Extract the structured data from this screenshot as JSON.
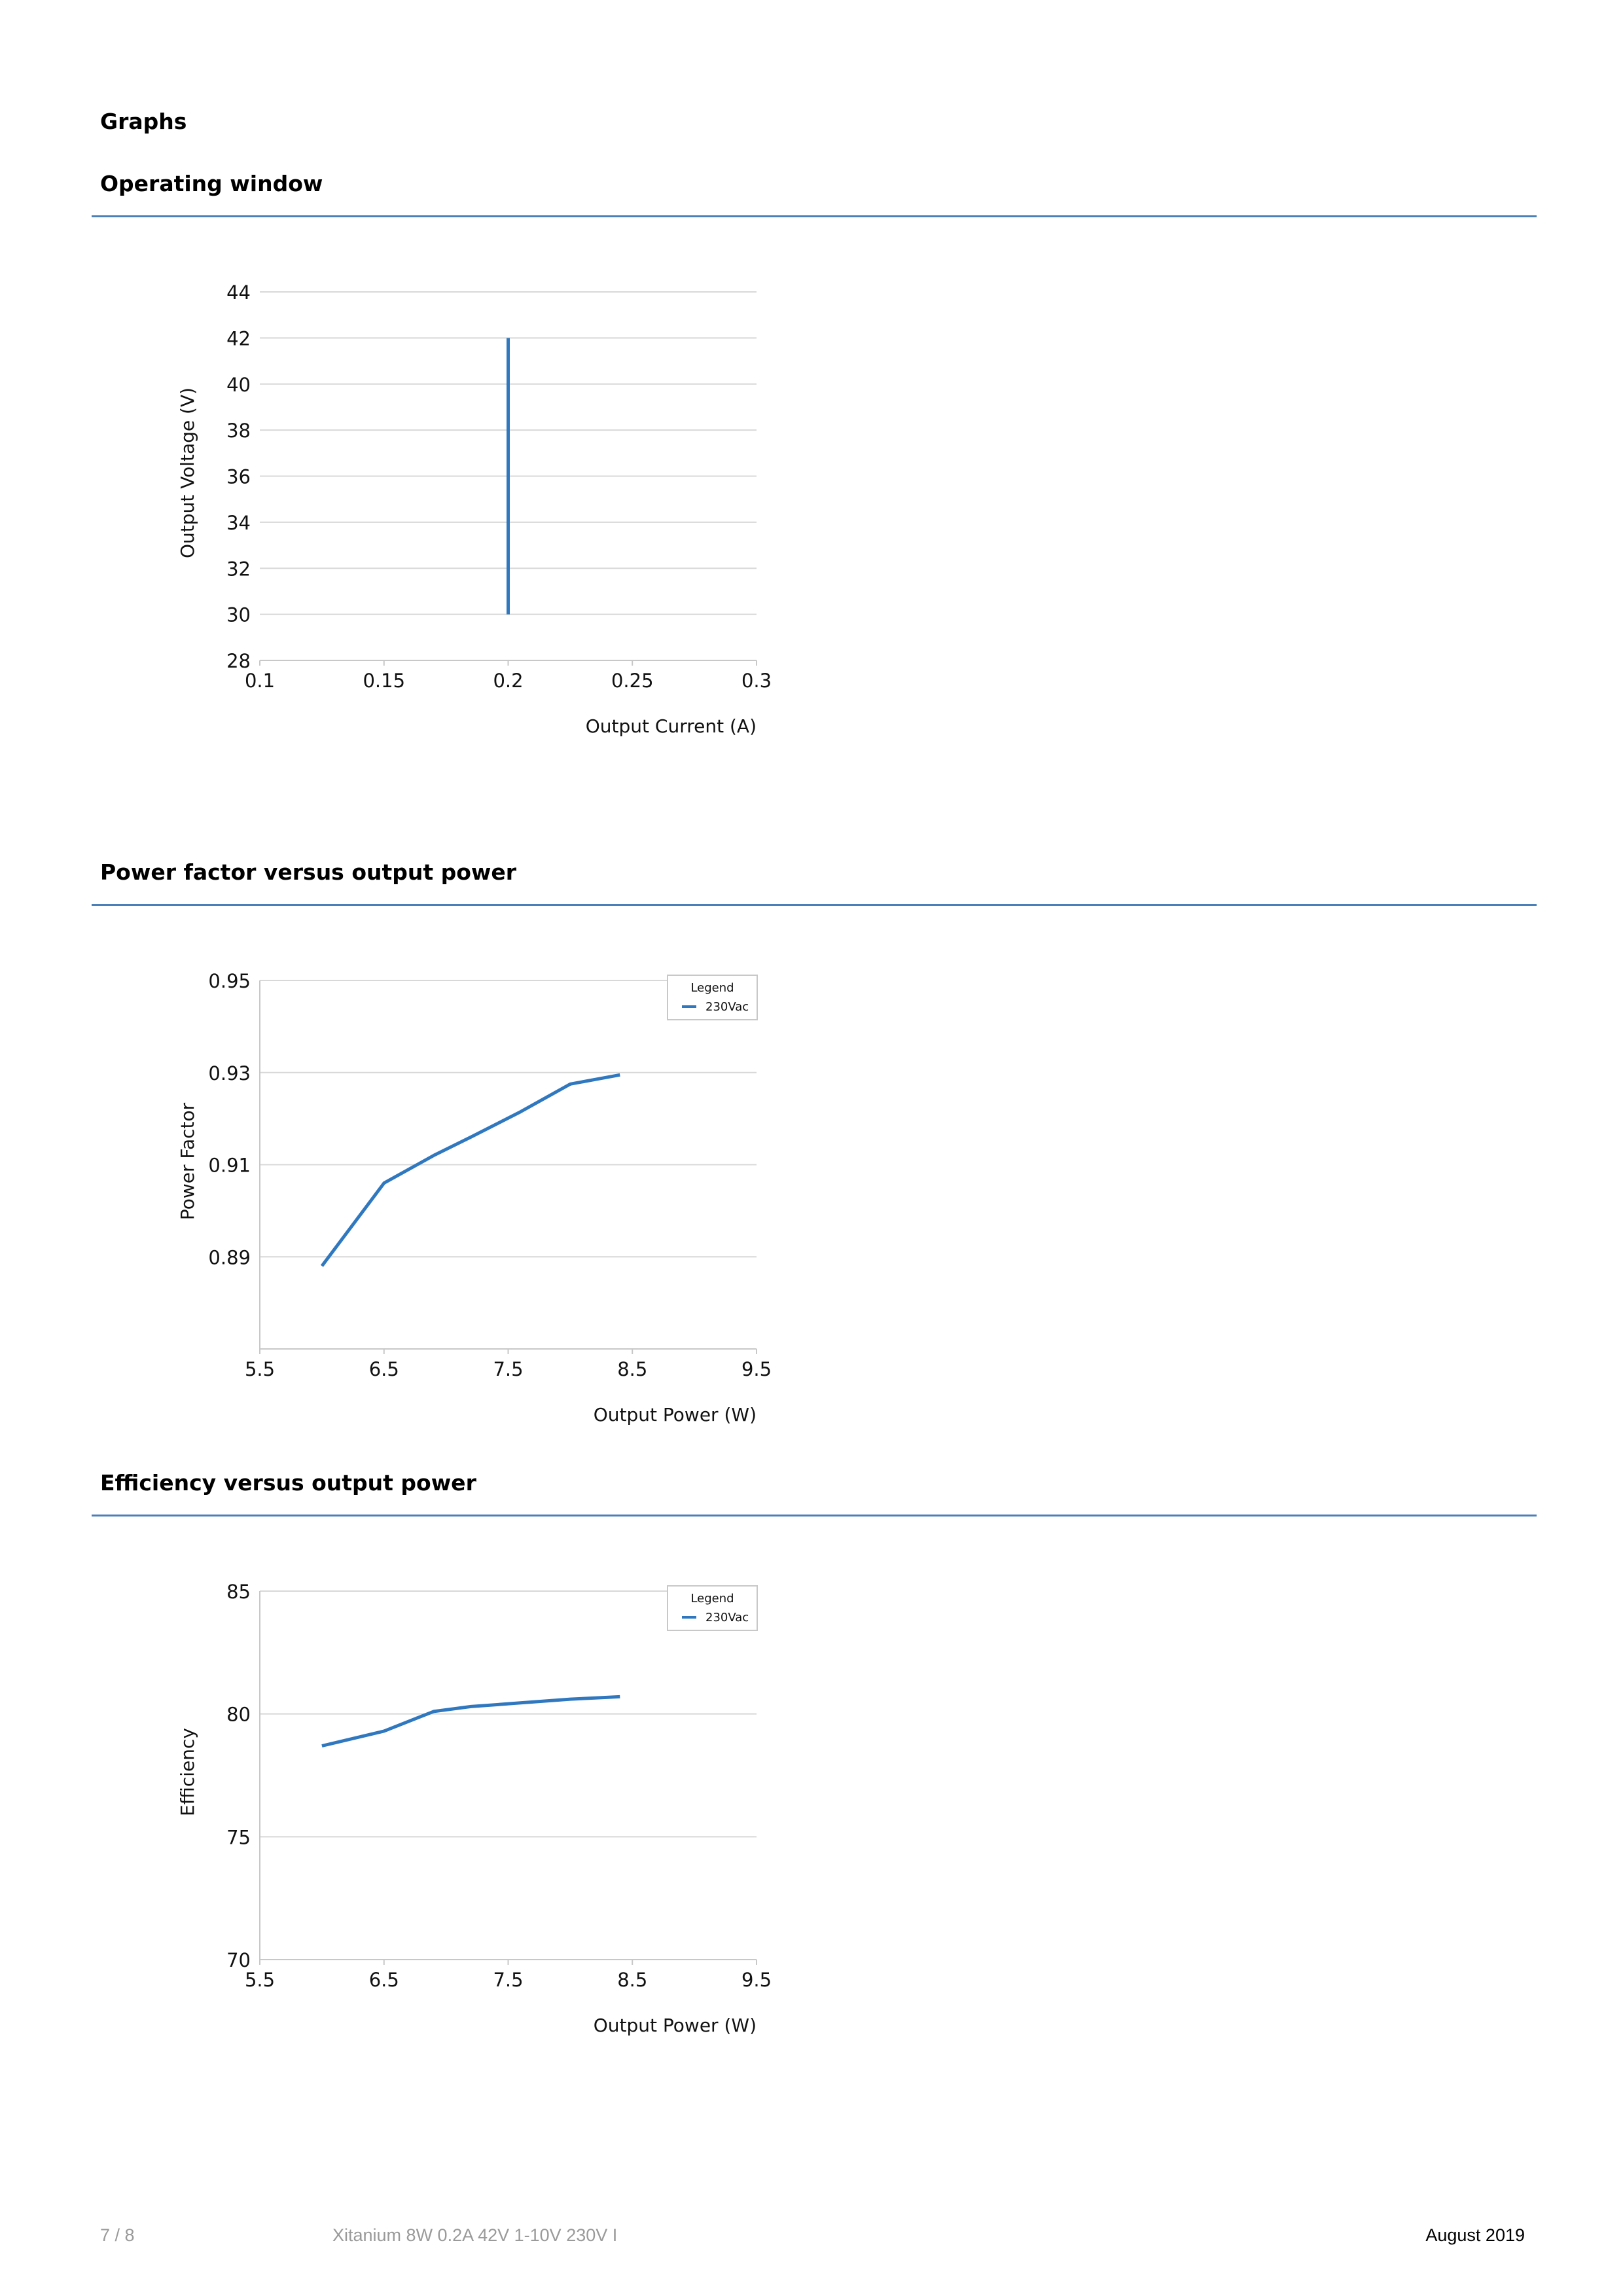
{
  "page": {
    "section_title": "Graphs"
  },
  "sections": [
    {
      "title": "Operating window"
    },
    {
      "title": "Power factor versus output power"
    },
    {
      "title": "Efficiency versus output power"
    }
  ],
  "footer": {
    "page_number": "7 / 8",
    "product": "Xitanium 8W 0.2A 42V 1-10V 230V I",
    "date": "August 2019"
  },
  "colors": {
    "series": "#2f78bf",
    "rule": "#4a7fb8",
    "grid": "#d8d8d8"
  },
  "chart_data": [
    {
      "type": "line",
      "xlabel": "Output Current (A)",
      "ylabel": "Output Voltage (V)",
      "xlim": [
        0.1,
        0.3
      ],
      "ylim": [
        28,
        44
      ],
      "xticks": [
        "0.1",
        "0.15",
        "0.2",
        "0.25",
        "0.3"
      ],
      "yticks": [
        "28",
        "30",
        "32",
        "34",
        "36",
        "38",
        "40",
        "42",
        "44"
      ],
      "grid": true,
      "legend": null,
      "series": [
        {
          "x": [
            0.2,
            0.2
          ],
          "y": [
            30,
            42
          ]
        }
      ]
    },
    {
      "type": "line",
      "xlabel": "Output Power (W)",
      "ylabel": "Power Factor",
      "xlim": [
        5.5,
        9.5
      ],
      "ylim": [
        0.87,
        0.95
      ],
      "xticks": [
        "5.5",
        "6.5",
        "7.5",
        "8.5",
        "9.5"
      ],
      "yticks": [
        "0.89",
        "0.91",
        "0.93",
        "0.95"
      ],
      "grid": true,
      "legend": {
        "title": "Legend",
        "position": "top-right"
      },
      "series": [
        {
          "name": "230Vac",
          "x": [
            6.0,
            6.5,
            6.9,
            7.2,
            7.6,
            8.0,
            8.4
          ],
          "y": [
            0.888,
            0.906,
            0.912,
            0.916,
            0.9215,
            0.9275,
            0.9295
          ]
        }
      ]
    },
    {
      "type": "line",
      "xlabel": "Output Power (W)",
      "ylabel": "Efficiency",
      "xlim": [
        5.5,
        9.5
      ],
      "ylim": [
        70,
        85
      ],
      "xticks": [
        "5.5",
        "6.5",
        "7.5",
        "8.5",
        "9.5"
      ],
      "yticks": [
        "70",
        "75",
        "80",
        "85"
      ],
      "grid": true,
      "legend": {
        "title": "Legend",
        "position": "top-right"
      },
      "series": [
        {
          "name": "230Vac",
          "x": [
            6.0,
            6.5,
            6.9,
            7.2,
            7.6,
            8.0,
            8.4
          ],
          "y": [
            78.7,
            79.3,
            80.1,
            80.3,
            80.45,
            80.6,
            80.7
          ]
        }
      ]
    }
  ]
}
